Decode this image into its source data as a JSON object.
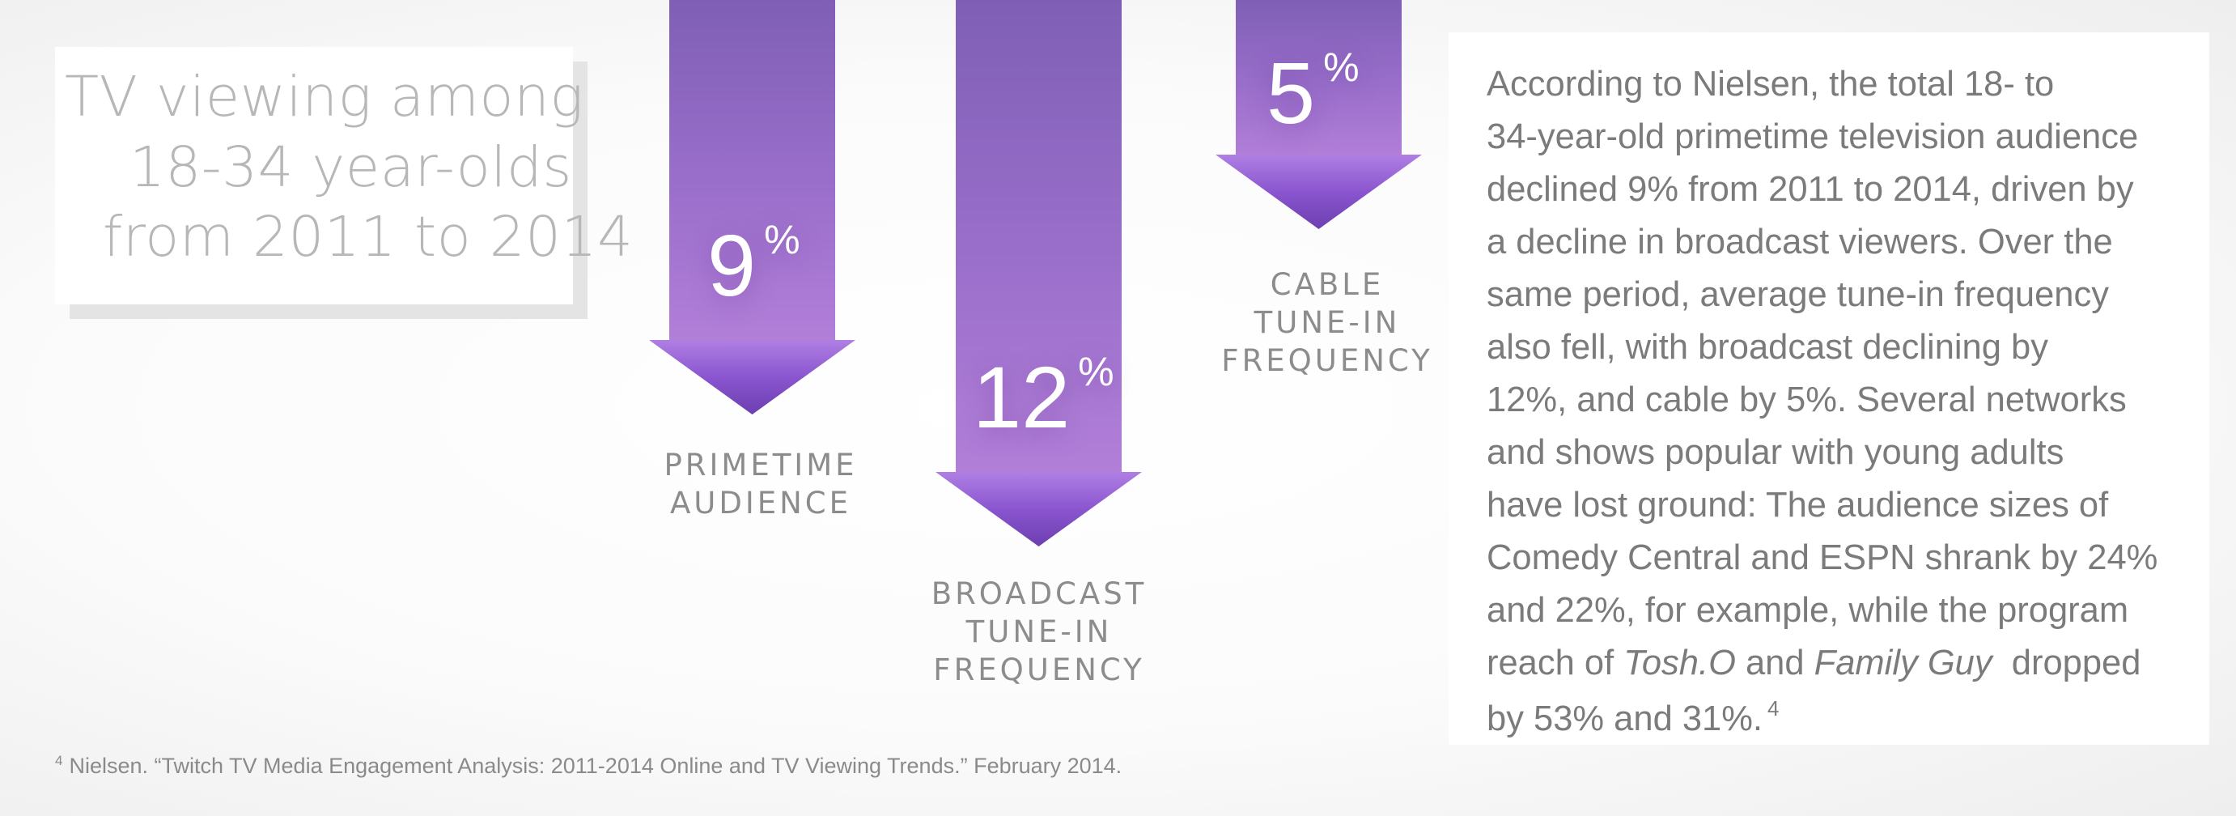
{
  "title": {
    "line1": "TV viewing among",
    "line2": "18-34 year-olds",
    "line3": "from 2011 to 2014"
  },
  "chart_data": {
    "type": "bar",
    "unit": "%",
    "categories": [
      "PRIMETIME AUDIENCE",
      "BROADCAST TUNE-IN FREQUENCY",
      "CABLE TUNE-IN FREQUENCY"
    ],
    "values": [
      9,
      12,
      5
    ],
    "series": [
      {
        "values": [
          9,
          12,
          5
        ]
      }
    ],
    "direction": "decline (downward arrows)",
    "bars": [
      {
        "value": "9",
        "sign": "%",
        "label_lines": [
          "PRIMETIME",
          "AUDIENCE"
        ]
      },
      {
        "value": "12",
        "sign": "%",
        "label_lines": [
          "BROADCAST",
          "TUNE-IN",
          "FREQUENCY"
        ]
      },
      {
        "value": "5",
        "sign": "%",
        "label_lines": [
          "CABLE",
          "TUNE-IN",
          "FREQUENCY"
        ]
      }
    ],
    "colors": {
      "arrow": "#9a6fcb",
      "arrow_head": "#8a55cf"
    }
  },
  "paragraph": {
    "lines": [
      "According to Nielsen, the total 18- to",
      "34-year-old primetime television audience",
      "declined 9% from 2011 to 2014, driven by",
      "a decline in broadcast viewers. Over the",
      "same period, average tune-in frequency",
      "also fell, with broadcast declining by",
      "12%, and cable by 5%. Several networks",
      "and shows popular with young adults",
      "have lost ground: The audience sizes of",
      "Comedy Central and ESPN shrank by 24%",
      "and 22%, for example, while the program"
    ],
    "line12": {
      "pre": "reach of ",
      "show1": "Tosh.O",
      "mid": " and ",
      "show2": "Family Guy",
      "post": "  dropped"
    },
    "line13": {
      "text": "by 53% and 31%.",
      "ref": "4"
    }
  },
  "footnote": {
    "ref": "4",
    "text": "Nielsen. “Twitch TV Media Engagement Analysis: 2011-2014 Online and TV Viewing Trends.” February 2014."
  },
  "colors": {
    "title_text": "#b7b7b7",
    "body_text": "#7b7b7b",
    "label_text": "#8c8c8c"
  }
}
